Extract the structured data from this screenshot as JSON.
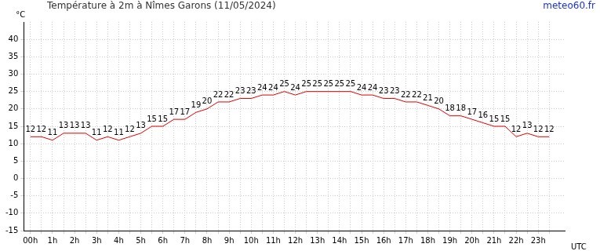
{
  "chart_data": {
    "type": "line",
    "title": "Température à 2m à Nîmes Garons (11/05/2024)",
    "source": "meteo60.fr",
    "y_label": "°C",
    "x_label": "UTC",
    "categories": [
      "00h",
      null,
      "1h",
      null,
      "2h",
      null,
      "3h",
      null,
      "4h",
      null,
      "5h",
      null,
      "6h",
      null,
      "7h",
      null,
      "8h",
      null,
      "9h",
      null,
      "10h",
      null,
      "11h",
      null,
      "12h",
      null,
      "13h",
      null,
      "14h",
      null,
      "15h",
      null,
      "16h",
      null,
      "17h",
      null,
      "18h",
      null,
      "19h",
      null,
      "20h",
      null,
      "21h",
      null,
      "22h",
      null,
      "23h",
      null
    ],
    "values": [
      12,
      12,
      11,
      13,
      13,
      13,
      11,
      12,
      11,
      12,
      13,
      15,
      15,
      17,
      17,
      19,
      20,
      22,
      22,
      23,
      23,
      24,
      24,
      25,
      24,
      25,
      25,
      25,
      25,
      25,
      24,
      24,
      23,
      23,
      22,
      22,
      21,
      20,
      18,
      18,
      17,
      16,
      15,
      15,
      12,
      13,
      12,
      12
    ],
    "color": "#e00000",
    "ylim": [
      -15,
      45
    ],
    "yticks": [
      -15,
      -10,
      -5,
      0,
      5,
      10,
      15,
      20,
      25,
      30,
      35,
      40
    ],
    "grid": true,
    "data_labels": true
  }
}
